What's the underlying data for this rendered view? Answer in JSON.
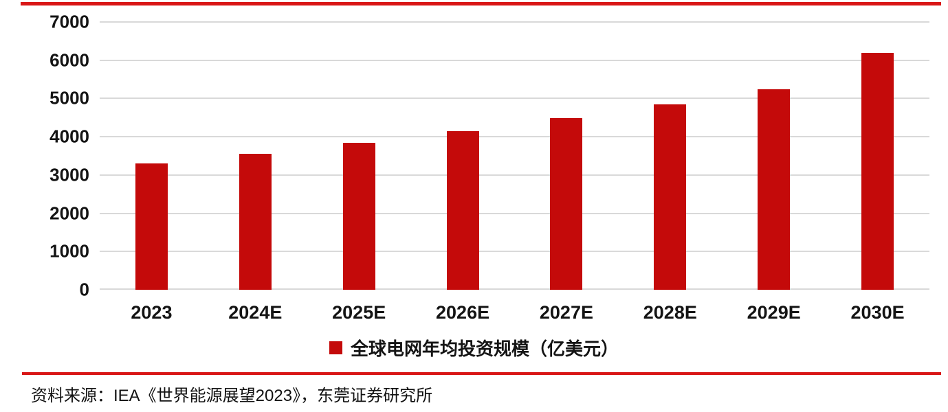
{
  "chart_data": {
    "type": "bar",
    "title": "",
    "categories": [
      "2023",
      "2024E",
      "2025E",
      "2026E",
      "2027E",
      "2028E",
      "2029E",
      "2030E"
    ],
    "values": [
      3300,
      3560,
      3850,
      4150,
      4490,
      4850,
      5240,
      6200
    ],
    "legend": "全球电网年均投资规模（亿美元）",
    "legend_position": "bottom-center",
    "xlabel": "",
    "ylabel": "",
    "ylim": [
      0,
      7000
    ],
    "ytick_step": 1000,
    "grid": true,
    "bar_color": "#c40a0a",
    "gridline_color": "#d9d9d9",
    "accent_rule_color": "#d91616",
    "text_color": "#141414"
  },
  "footer": {
    "source_note": "资料来源：IEA《世界能源展望2023》，东莞证券研究所"
  }
}
